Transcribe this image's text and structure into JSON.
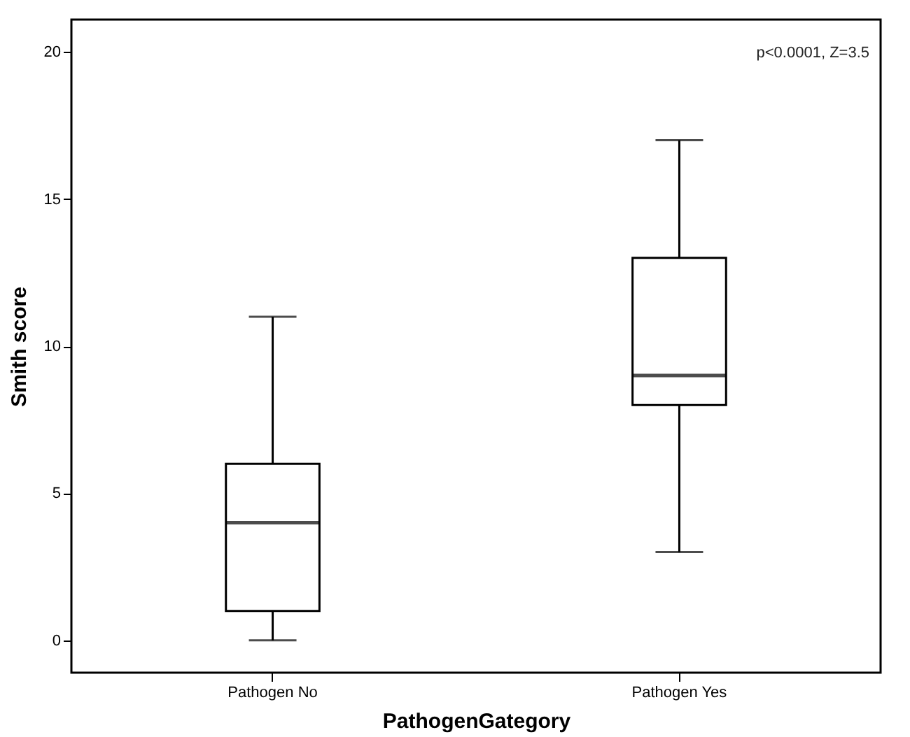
{
  "chart_data": {
    "type": "box",
    "xlabel": "PathogenGategory",
    "ylabel": "Smith score",
    "categories": [
      "Pathogen No",
      "Pathogen Yes"
    ],
    "boxes": [
      {
        "low": 0,
        "q1": 1,
        "median": 4,
        "q3": 6,
        "high": 11
      },
      {
        "low": 3,
        "q1": 8,
        "median": 9,
        "q3": 13,
        "high": 17
      }
    ],
    "ylim": [
      -1.1,
      21.1
    ],
    "yticks": [
      0,
      5,
      10,
      15,
      20
    ],
    "grid": false,
    "annotations": [
      "p<0.0001, Z=3.5"
    ]
  }
}
